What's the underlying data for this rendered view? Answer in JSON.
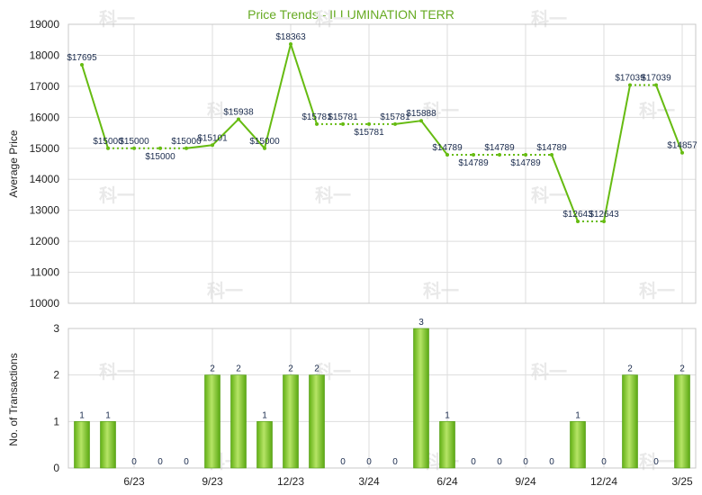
{
  "chart_data": [
    {
      "type": "line",
      "title": "Price Trends - ILLUMINATION TERR",
      "ylabel": "Average Price",
      "ylim": [
        10000,
        19000
      ],
      "y_ticks": [
        "10000",
        "11000",
        "12000",
        "13000",
        "14000",
        "15000",
        "16000",
        "17000",
        "18000",
        "19000"
      ],
      "grid": true,
      "series": [
        {
          "values": [
            17695,
            15000,
            15000,
            15000,
            15000,
            15101,
            15938,
            15000,
            18363,
            15781,
            15781,
            15781,
            15781,
            15888,
            14789,
            14789,
            14789,
            14789,
            14789,
            12643,
            12643,
            17039,
            17039,
            14857
          ],
          "labels": [
            "$17695",
            "$15000",
            "$15000",
            "$15000",
            "$15000",
            "$15101",
            "$15938",
            "$15000",
            "$18363",
            "$15781",
            "$15781",
            "$15781",
            "$15781",
            "$15888",
            "$14789",
            "$14789",
            "$14789",
            "$14789",
            "$14789",
            "$12643",
            "$12643",
            "$17039",
            "$17039",
            "$14857"
          ],
          "has_transactions": [
            true,
            true,
            false,
            false,
            false,
            true,
            true,
            true,
            true,
            true,
            false,
            false,
            false,
            true,
            true,
            false,
            false,
            false,
            false,
            true,
            false,
            true,
            false,
            true
          ]
        }
      ]
    },
    {
      "type": "bar",
      "ylabel": "No. of Transactions",
      "ylim": [
        0,
        3
      ],
      "y_ticks": [
        "0",
        "1",
        "2",
        "3"
      ],
      "grid": true,
      "values": [
        1,
        1,
        0,
        0,
        0,
        2,
        2,
        1,
        2,
        2,
        0,
        0,
        0,
        3,
        1,
        0,
        0,
        0,
        0,
        1,
        0,
        2,
        0,
        2
      ],
      "value_labels": [
        "1",
        "1",
        "0",
        "0",
        "0",
        "2",
        "2",
        "1",
        "2",
        "2",
        "0",
        "0",
        "0",
        "3",
        "1",
        "0",
        "0",
        "0",
        "0",
        "1",
        "0",
        "2",
        "0",
        "2"
      ],
      "x_tick_labels": [
        "6/23",
        "9/23",
        "12/23",
        "3/24",
        "6/24",
        "9/24",
        "12/24",
        "3/25"
      ],
      "x_tick_index": [
        2,
        5,
        8,
        11,
        14,
        17,
        20,
        23
      ]
    }
  ],
  "colors": {
    "line": "#66bb11",
    "title": "#66aa22",
    "bar_light": "#aadd55",
    "bar_dark": "#55a510",
    "grid": "#dddddd",
    "label": "#1a2b4d"
  },
  "watermark": "科一"
}
